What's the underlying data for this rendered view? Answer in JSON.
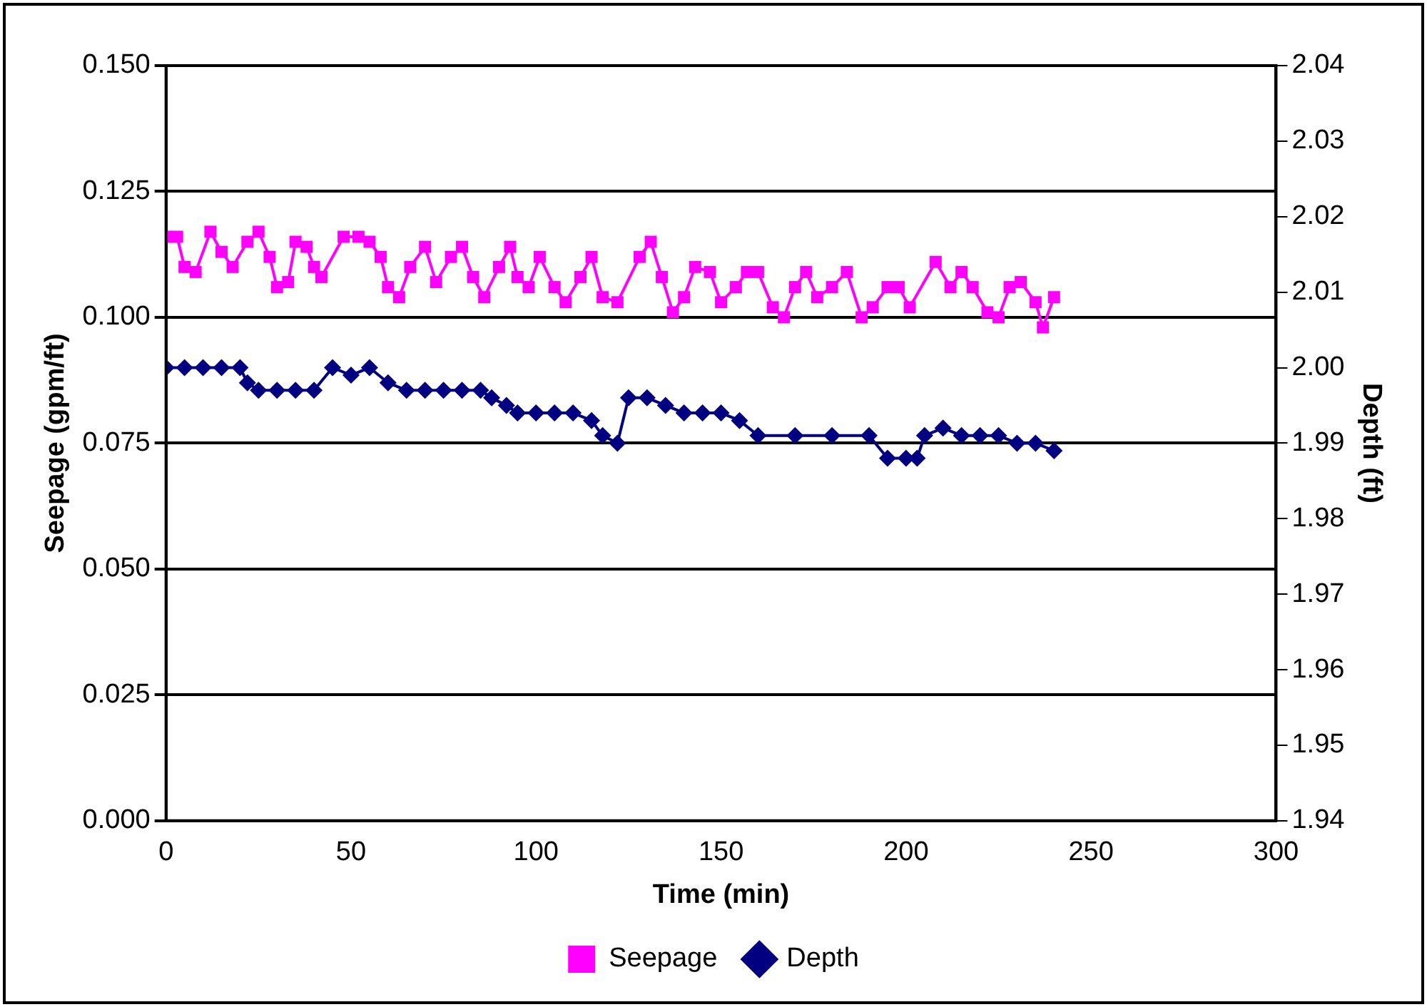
{
  "chart_data": {
    "type": "line",
    "xlabel": "Time (min)",
    "ylabel": "Seepage (gpm/ft)",
    "y2label": "Depth (ft)",
    "xlim": [
      0,
      300
    ],
    "xticks": [
      0,
      50,
      100,
      150,
      200,
      250,
      300
    ],
    "ylim": [
      0,
      0.15
    ],
    "yticks": [
      {
        "value": 0,
        "label": "0.000"
      },
      {
        "value": 0.025,
        "label": "0.025"
      },
      {
        "value": 0.05,
        "label": "0.050"
      },
      {
        "value": 0.075,
        "label": "0.075"
      },
      {
        "value": 0.1,
        "label": "0.100"
      },
      {
        "value": 0.125,
        "label": "0.125"
      },
      {
        "value": 0.15,
        "label": "0.150"
      }
    ],
    "y2lim": [
      1.94,
      2.04
    ],
    "y2ticks": [
      {
        "value": 1.94,
        "label": "1.94"
      },
      {
        "value": 1.95,
        "label": "1.95"
      },
      {
        "value": 1.96,
        "label": "1.96"
      },
      {
        "value": 1.97,
        "label": "1.97"
      },
      {
        "value": 1.98,
        "label": "1.98"
      },
      {
        "value": 1.99,
        "label": "1.99"
      },
      {
        "value": 2.0,
        "label": "2.00"
      },
      {
        "value": 2.01,
        "label": "2.01"
      },
      {
        "value": 2.02,
        "label": "2.02"
      },
      {
        "value": 2.03,
        "label": "2.03"
      },
      {
        "value": 2.04,
        "label": "2.04"
      }
    ],
    "grid": "y",
    "legend": "bottom",
    "series": [
      {
        "name": "Seepage",
        "color": "#ff00ff",
        "marker": "square",
        "x": [
          0,
          3,
          5,
          8,
          12,
          15,
          18,
          22,
          25,
          28,
          30,
          33,
          35,
          38,
          40,
          42,
          48,
          52,
          55,
          58,
          60,
          63,
          66,
          70,
          73,
          77,
          80,
          83,
          86,
          90,
          93,
          95,
          98,
          101,
          105,
          108,
          112,
          115,
          118,
          122,
          128,
          131,
          134,
          137,
          140,
          143,
          147,
          150,
          154,
          157,
          160,
          164,
          167,
          170,
          173,
          176,
          180,
          184,
          188,
          191,
          195,
          198,
          201,
          208,
          212,
          215,
          218,
          222,
          225,
          228,
          231,
          235,
          237,
          240
        ],
        "values": [
          0.116,
          0.116,
          0.11,
          0.109,
          0.117,
          0.113,
          0.11,
          0.115,
          0.117,
          0.112,
          0.106,
          0.107,
          0.115,
          0.114,
          0.11,
          0.108,
          0.116,
          0.116,
          0.115,
          0.112,
          0.106,
          0.104,
          0.11,
          0.114,
          0.107,
          0.112,
          0.114,
          0.108,
          0.104,
          0.11,
          0.114,
          0.108,
          0.106,
          0.112,
          0.106,
          0.103,
          0.108,
          0.112,
          0.104,
          0.103,
          0.112,
          0.115,
          0.108,
          0.101,
          0.104,
          0.11,
          0.109,
          0.103,
          0.106,
          0.109,
          0.109,
          0.102,
          0.1,
          0.106,
          0.109,
          0.104,
          0.106,
          0.109,
          0.1,
          0.102,
          0.106,
          0.106,
          0.102,
          0.111,
          0.106,
          0.109,
          0.106,
          0.101,
          0.1,
          0.106,
          0.107,
          0.103,
          0.098,
          0.104
        ]
      },
      {
        "name": "Depth",
        "color": "#000080",
        "marker": "diamond",
        "axis": "y2",
        "x": [
          0,
          5,
          10,
          15,
          20,
          22,
          25,
          30,
          35,
          40,
          45,
          50,
          55,
          60,
          65,
          70,
          75,
          80,
          85,
          88,
          92,
          95,
          100,
          105,
          110,
          115,
          118,
          122,
          125,
          130,
          135,
          140,
          145,
          150,
          155,
          160,
          170,
          180,
          190,
          195,
          200,
          203,
          205,
          210,
          215,
          220,
          225,
          230,
          235,
          240
        ],
        "values": [
          2.0,
          2.0,
          2.0,
          2.0,
          2.0,
          1.998,
          1.997,
          1.997,
          1.997,
          1.997,
          2.0,
          1.999,
          2.0,
          1.998,
          1.997,
          1.997,
          1.997,
          1.997,
          1.997,
          1.996,
          1.995,
          1.994,
          1.994,
          1.994,
          1.994,
          1.993,
          1.991,
          1.99,
          1.996,
          1.996,
          1.995,
          1.994,
          1.994,
          1.994,
          1.993,
          1.991,
          1.991,
          1.991,
          1.991,
          1.988,
          1.988,
          1.988,
          1.991,
          1.992,
          1.991,
          1.991,
          1.991,
          1.99,
          1.99,
          1.989
        ]
      }
    ]
  }
}
